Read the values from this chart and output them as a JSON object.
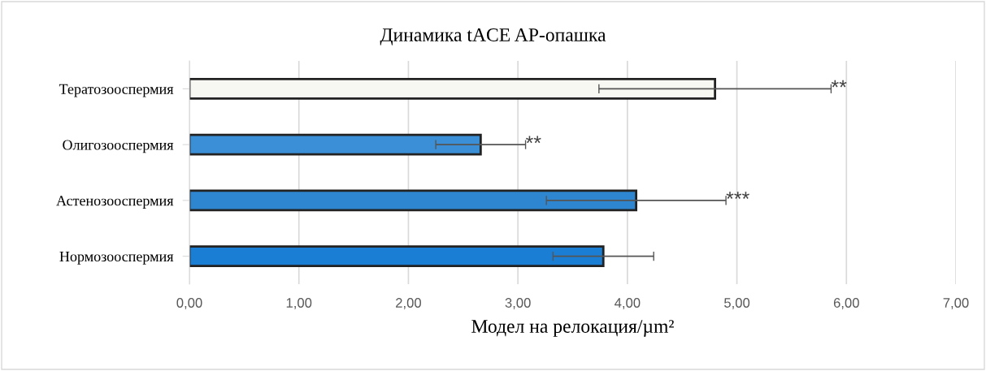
{
  "chart_data": {
    "type": "bar",
    "orientation": "horizontal",
    "title": "Динамика tACE AP-опашка",
    "xlabel": "Модел на релокация/µm²",
    "categories": [
      "Тератозооспермия",
      "Олигозооспермия",
      "Астенозооспермия",
      "Нормозооспермия"
    ],
    "values": [
      4.8,
      2.66,
      4.08,
      3.78
    ],
    "errors": [
      1.06,
      0.41,
      0.82,
      0.46
    ],
    "colors": [
      "#f8f8f2",
      "#3a8fd6",
      "#2e86d0",
      "#1a7fd4"
    ],
    "xlim": [
      0,
      7
    ],
    "xticks": [
      {
        "value": 0,
        "label": "0,00"
      },
      {
        "value": 1,
        "label": "1,00"
      },
      {
        "value": 2,
        "label": "2,00"
      },
      {
        "value": 3,
        "label": "3,00"
      },
      {
        "value": 4,
        "label": "4,00"
      },
      {
        "value": 5,
        "label": "5,00"
      },
      {
        "value": 6,
        "label": "6,00"
      },
      {
        "value": 7,
        "label": "7,00"
      }
    ],
    "grid": "x",
    "annotations": [
      {
        "text": "**",
        "x": 5.86,
        "y": "Тератозооспермия"
      },
      {
        "text": "**",
        "x": 3.07,
        "y": "Олигозооспермия"
      },
      {
        "text": "***",
        "x": 4.9,
        "y": "Астенозооспермия"
      }
    ]
  }
}
